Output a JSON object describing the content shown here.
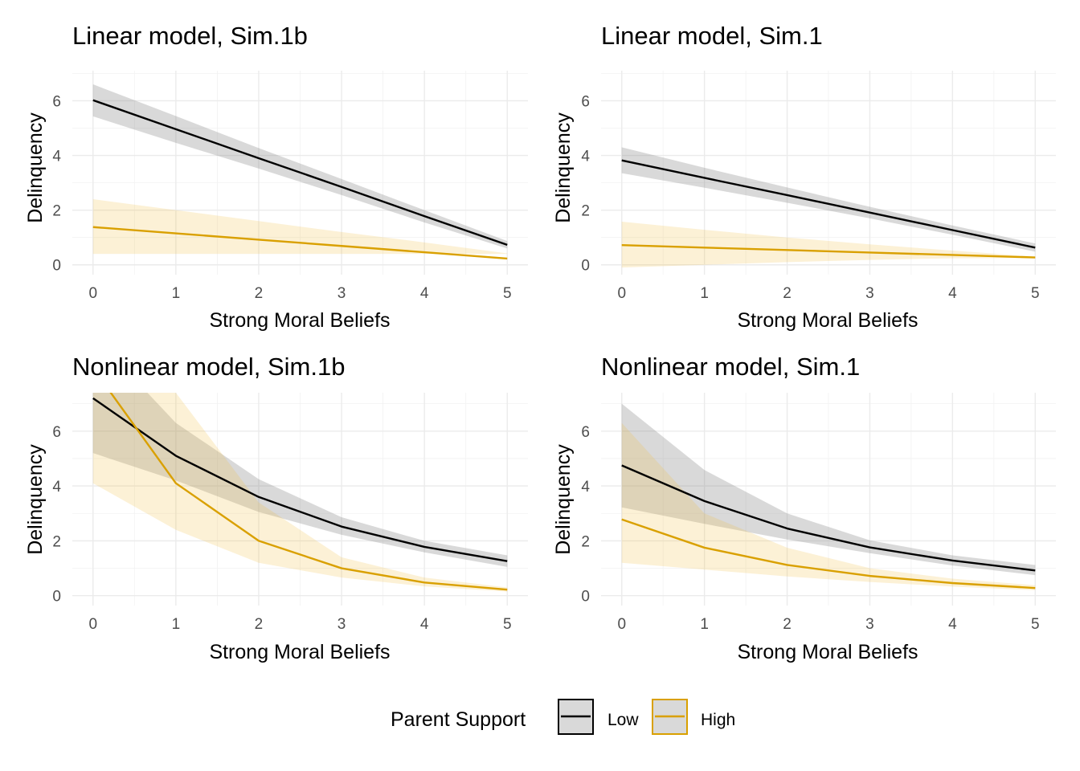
{
  "chart_data": [
    {
      "type": "line",
      "title": "Linear model, Sim.1b",
      "xlabel": "Strong Moral Beliefs",
      "ylabel": "Delinquency",
      "xlim": [
        -0.25,
        5.25
      ],
      "ylim": [
        -0.36,
        7.1
      ],
      "xticks": [
        0,
        1,
        2,
        3,
        4,
        5
      ],
      "yticks": [
        0,
        2,
        4,
        6
      ],
      "grid": true,
      "x": [
        0,
        1,
        2,
        3,
        4,
        5
      ],
      "series": [
        {
          "name": "Low",
          "values": [
            6.02,
            4.96,
            3.9,
            2.85,
            1.78,
            0.73
          ],
          "lower": [
            5.43,
            4.46,
            3.52,
            2.55,
            1.55,
            0.6
          ],
          "upper": [
            6.6,
            5.44,
            4.27,
            3.14,
            2.0,
            0.87
          ]
        },
        {
          "name": "High",
          "values": [
            1.38,
            1.15,
            0.92,
            0.69,
            0.46,
            0.23
          ],
          "lower": [
            0.4,
            0.4,
            0.4,
            0.4,
            0.4,
            0.4
          ],
          "upper": [
            2.4,
            2.0,
            1.6,
            1.2,
            0.82,
            0.42
          ]
        }
      ]
    },
    {
      "type": "line",
      "title": "Linear model, Sim.1",
      "xlabel": "Strong Moral Beliefs",
      "ylabel": "Delinquency",
      "xlim": [
        -0.25,
        5.25
      ],
      "ylim": [
        -0.36,
        7.1
      ],
      "xticks": [
        0,
        1,
        2,
        3,
        4,
        5
      ],
      "yticks": [
        0,
        2,
        4,
        6
      ],
      "grid": true,
      "x": [
        0,
        1,
        2,
        3,
        4,
        5
      ],
      "series": [
        {
          "name": "Low",
          "values": [
            3.82,
            3.18,
            2.55,
            1.91,
            1.27,
            0.63
          ],
          "lower": [
            3.35,
            2.82,
            2.27,
            1.7,
            1.1,
            0.48
          ],
          "upper": [
            4.3,
            3.55,
            2.83,
            2.12,
            1.44,
            0.78
          ]
        },
        {
          "name": "High",
          "values": [
            0.72,
            0.63,
            0.54,
            0.45,
            0.36,
            0.27
          ],
          "lower": [
            -0.1,
            0.0,
            0.1,
            0.18,
            0.24,
            0.25
          ],
          "upper": [
            1.58,
            1.28,
            1.0,
            0.75,
            0.52,
            0.3
          ]
        }
      ]
    },
    {
      "type": "line",
      "title": "Nonlinear model, Sim.1b",
      "xlabel": "Strong Moral Beliefs",
      "ylabel": "Delinquency",
      "xlim": [
        -0.25,
        5.25
      ],
      "ylim": [
        -0.36,
        7.4
      ],
      "xticks": [
        0,
        1,
        2,
        3,
        4,
        5
      ],
      "yticks": [
        0,
        2,
        4,
        6
      ],
      "grid": true,
      "x": [
        0,
        1,
        2,
        3,
        4,
        5
      ],
      "series": [
        {
          "name": "Low",
          "values": [
            7.2,
            5.1,
            3.6,
            2.52,
            1.78,
            1.26
          ],
          "lower": [
            5.2,
            4.2,
            3.05,
            2.22,
            1.58,
            1.05
          ],
          "upper": [
            9.5,
            6.3,
            4.25,
            2.86,
            2.0,
            1.47
          ]
        },
        {
          "name": "High",
          "values": [
            8.3,
            4.1,
            2.0,
            1.0,
            0.48,
            0.22
          ],
          "lower": [
            4.1,
            2.4,
            1.2,
            0.66,
            0.34,
            0.15
          ],
          "upper": [
            14.0,
            7.4,
            3.4,
            1.4,
            0.66,
            0.3
          ]
        }
      ]
    },
    {
      "type": "line",
      "title": "Nonlinear model, Sim.1",
      "xlabel": "Strong Moral Beliefs",
      "ylabel": "Delinquency",
      "xlim": [
        -0.25,
        5.25
      ],
      "ylim": [
        -0.36,
        7.4
      ],
      "xticks": [
        0,
        1,
        2,
        3,
        4,
        5
      ],
      "yticks": [
        0,
        2,
        4,
        6
      ],
      "grid": true,
      "x": [
        0,
        1,
        2,
        3,
        4,
        5
      ],
      "series": [
        {
          "name": "Low",
          "values": [
            4.75,
            3.45,
            2.45,
            1.76,
            1.28,
            0.92
          ],
          "lower": [
            3.22,
            2.62,
            2.05,
            1.55,
            1.1,
            0.75
          ],
          "upper": [
            7.0,
            4.58,
            3.0,
            2.02,
            1.47,
            1.12
          ]
        },
        {
          "name": "High",
          "values": [
            2.78,
            1.75,
            1.12,
            0.72,
            0.46,
            0.28
          ],
          "lower": [
            1.2,
            0.95,
            0.7,
            0.5,
            0.33,
            0.2
          ],
          "upper": [
            6.3,
            3.0,
            1.75,
            1.0,
            0.62,
            0.38
          ]
        }
      ]
    }
  ],
  "legend": {
    "title": "Parent Support",
    "position": "bottom",
    "items": [
      {
        "label": "Low",
        "line_color": "#000000",
        "fill_color": "#bdbdbd"
      },
      {
        "label": "High",
        "line_color": "#E69F00",
        "fill_color": "#f5deb0"
      }
    ]
  },
  "colors": {
    "low_line": "#000000",
    "low_ribbon": "rgba(128,128,128,0.30)",
    "high_line": "#D9A000",
    "high_ribbon": "rgba(240,190,70,0.22)"
  }
}
